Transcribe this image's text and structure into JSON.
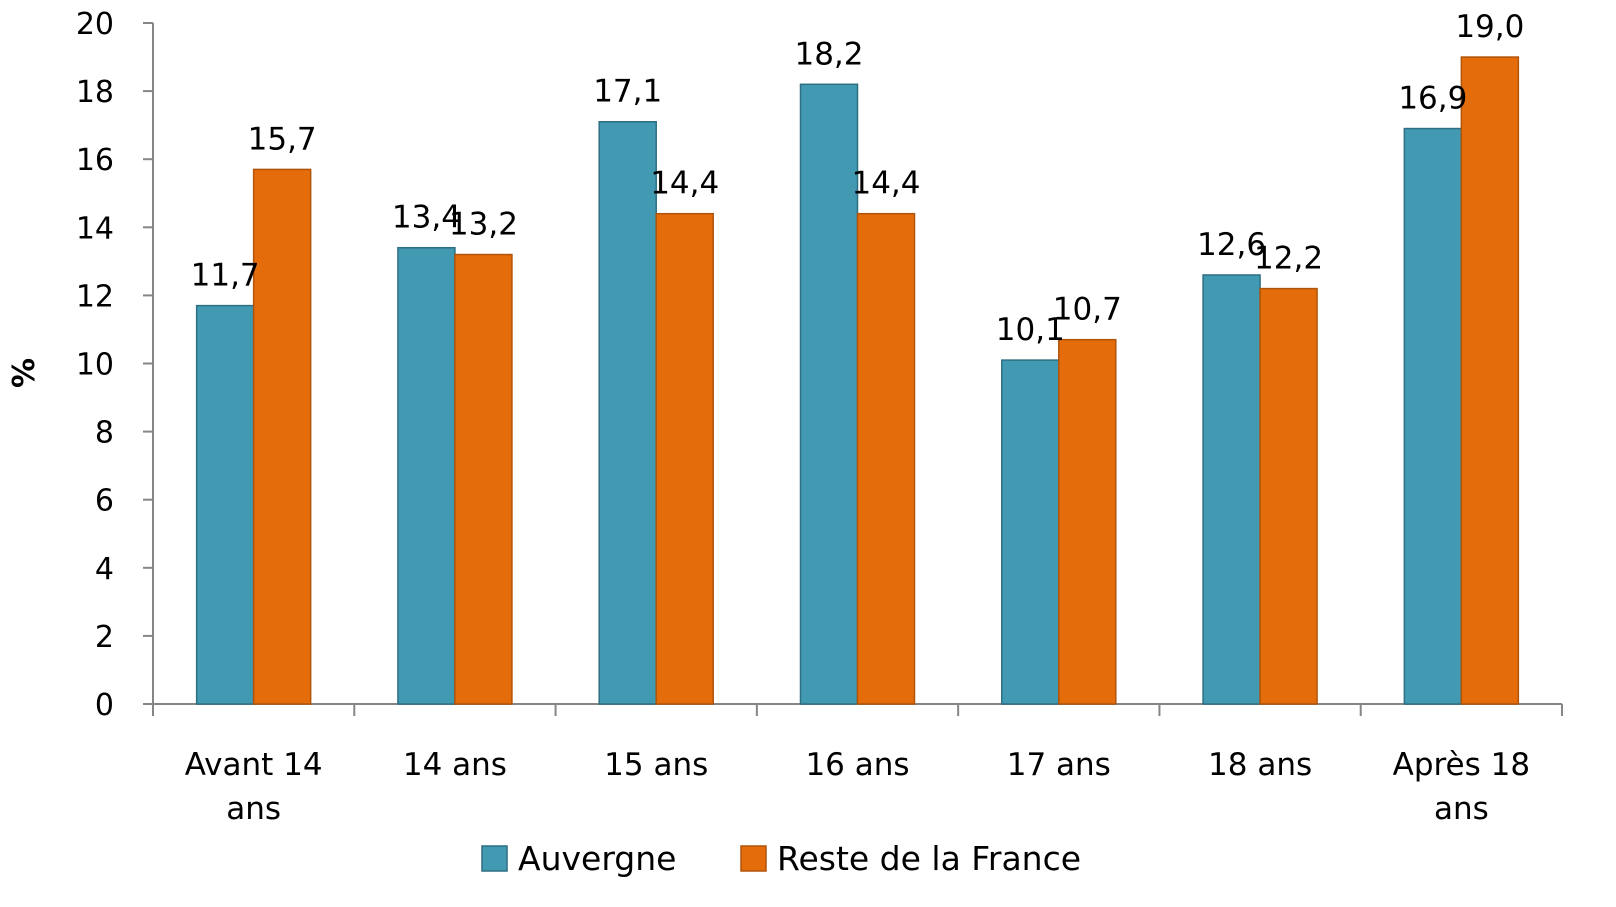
{
  "chart_data": {
    "type": "bar",
    "ylabel": "%",
    "ylim": [
      0,
      20
    ],
    "yticks": [
      0,
      2,
      4,
      6,
      8,
      10,
      12,
      14,
      16,
      18,
      20
    ],
    "categories": [
      [
        "Avant 14",
        "ans"
      ],
      [
        "14 ans"
      ],
      [
        "15 ans"
      ],
      [
        "16 ans"
      ],
      [
        "17 ans"
      ],
      [
        "18 ans"
      ],
      [
        "Après 18",
        "ans"
      ]
    ],
    "series": [
      {
        "name": "Auvergne",
        "color": "#4199B2",
        "values": [
          11.7,
          13.4,
          17.1,
          18.2,
          10.1,
          12.6,
          16.9
        ],
        "labels": [
          "11,7",
          "13,4",
          "17,1",
          "18,2",
          "10,1",
          "12,6",
          "16,9"
        ]
      },
      {
        "name": "Reste de la France",
        "color": "#E46C0A",
        "values": [
          15.7,
          13.2,
          14.4,
          14.4,
          10.7,
          12.2,
          19.0
        ],
        "labels": [
          "15,7",
          "13,2",
          "14,4",
          "14,4",
          "10,7",
          "12,2",
          "19,0"
        ]
      }
    ],
    "legend": "bottom",
    "grid": false
  }
}
